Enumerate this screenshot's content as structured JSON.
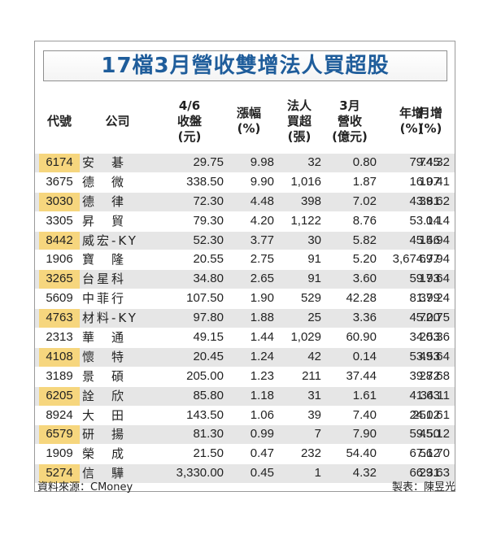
{
  "title": "17檔3月營收雙增法人買超股",
  "headers": [
    {
      "key": "code",
      "label": "代號"
    },
    {
      "key": "company",
      "label": "公司"
    },
    {
      "key": "close",
      "label": "4/6\n收盤\n(元)"
    },
    {
      "key": "change",
      "label": "漲幅\n(%)"
    },
    {
      "key": "net_buy",
      "label": "法人\n買超\n(張)"
    },
    {
      "key": "revenue",
      "label": "3月\n營收\n(億元)"
    },
    {
      "key": "yoy",
      "label": "年增\n(%)"
    },
    {
      "key": "mom",
      "label": "月增\n(%)"
    }
  ],
  "rows": [
    {
      "code": "6174",
      "company": "安　碁",
      "close": "29.75",
      "change": "9.98",
      "net_buy": "32",
      "revenue": "0.80",
      "yoy": "79.45",
      "mom": "74.32"
    },
    {
      "code": "3675",
      "company": "德　微",
      "close": "338.50",
      "change": "9.90",
      "net_buy": "1,016",
      "revenue": "1.87",
      "yoy": "16.07",
      "mom": "19.41"
    },
    {
      "code": "3030",
      "company": "德　律",
      "close": "72.30",
      "change": "4.48",
      "net_buy": "398",
      "revenue": "7.02",
      "yoy": "43.81",
      "mom": "39.62"
    },
    {
      "code": "3305",
      "company": "昇　貿",
      "close": "79.30",
      "change": "4.20",
      "net_buy": "1,122",
      "revenue": "8.76",
      "yoy": "53.14",
      "mom": "0.14"
    },
    {
      "code": "8442",
      "company": "威宏-KY",
      "close": "52.30",
      "change": "3.77",
      "net_buy": "30",
      "revenue": "5.82",
      "yoy": "45.46",
      "mom": "15.94"
    },
    {
      "code": "1906",
      "company": "寶　隆",
      "close": "20.55",
      "change": "2.75",
      "net_buy": "91",
      "revenue": "5.20",
      "yoy": "3,674.77",
      "mom": "69.94"
    },
    {
      "code": "3265",
      "company": "台星科",
      "close": "34.80",
      "change": "2.65",
      "net_buy": "91",
      "revenue": "3.60",
      "yoy": "59.93",
      "mom": "17.64"
    },
    {
      "code": "5609",
      "company": "中菲行",
      "close": "107.50",
      "change": "1.90",
      "net_buy": "529",
      "revenue": "42.28",
      "yoy": "81.99",
      "mom": "37.24"
    },
    {
      "code": "4763",
      "company": "材料-KY",
      "close": "97.80",
      "change": "1.88",
      "net_buy": "25",
      "revenue": "3.36",
      "yoy": "45.00",
      "mom": "72.75"
    },
    {
      "code": "2313",
      "company": "華　通",
      "close": "49.15",
      "change": "1.44",
      "net_buy": "1,029",
      "revenue": "60.90",
      "yoy": "34.53",
      "mom": "20.36"
    },
    {
      "code": "4108",
      "company": "懷　特",
      "close": "20.45",
      "change": "1.24",
      "net_buy": "42",
      "revenue": "0.14",
      "yoy": "53.53",
      "mom": "49.64"
    },
    {
      "code": "3189",
      "company": "景　碩",
      "close": "205.00",
      "change": "1.23",
      "net_buy": "211",
      "revenue": "37.44",
      "yoy": "39.72",
      "mom": "28.68"
    },
    {
      "code": "6205",
      "company": "詮　欣",
      "close": "85.80",
      "change": "1.18",
      "net_buy": "31",
      "revenue": "1.61",
      "yoy": "41.63",
      "mom": "34.11"
    },
    {
      "code": "8924",
      "company": "大　田",
      "close": "143.50",
      "change": "1.06",
      "net_buy": "39",
      "revenue": "7.40",
      "yoy": "24.02",
      "mom": "251.61"
    },
    {
      "code": "6579",
      "company": "研　揚",
      "close": "81.30",
      "change": "0.99",
      "net_buy": "7",
      "revenue": "7.90",
      "yoy": "59.50",
      "mom": "45.12"
    },
    {
      "code": "1909",
      "company": "榮　成",
      "close": "21.50",
      "change": "0.47",
      "net_buy": "232",
      "revenue": "54.40",
      "yoy": "67.12",
      "mom": "56.70"
    },
    {
      "code": "5274",
      "company": "信　驊",
      "close": "3,330.00",
      "change": "0.45",
      "net_buy": "1",
      "revenue": "4.32",
      "yoy": "66.31",
      "mom": "29.63"
    }
  ],
  "footer": {
    "source": "資料來源：CMoney",
    "credit": "製表：陳昱光"
  },
  "colors": {
    "title": "#1f5d9b",
    "row_shade": "#e6e6e6",
    "code_shade": "#f6d67e"
  }
}
